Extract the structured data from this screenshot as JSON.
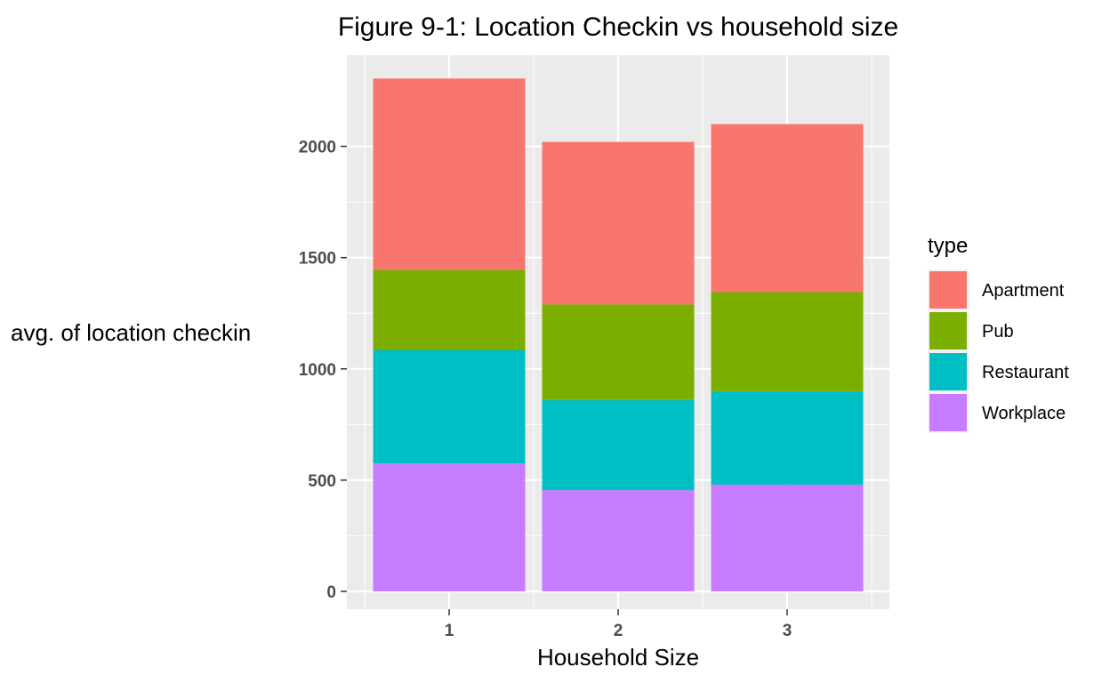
{
  "chart_data": {
    "type": "bar",
    "stacked": true,
    "title": "Figure 9-1: Location Checkin vs household size",
    "xlabel": "Household Size",
    "ylabel": "avg. of location checkin",
    "categories": [
      "1",
      "2",
      "3"
    ],
    "ylim": [
      -80,
      2410
    ],
    "yticks": [
      0,
      500,
      1000,
      1500,
      2000
    ],
    "grid": true,
    "legend": {
      "title": "type",
      "position": "right"
    },
    "series": [
      {
        "name": "Workplace",
        "color": "#C77CFF",
        "values": [
          575,
          455,
          480
        ]
      },
      {
        "name": "Restaurant",
        "color": "#00BFC4",
        "values": [
          510,
          405,
          420
        ]
      },
      {
        "name": "Pub",
        "color": "#7CAE00",
        "values": [
          360,
          430,
          445
        ]
      },
      {
        "name": "Apartment",
        "color": "#F8766D",
        "values": [
          860,
          730,
          755
        ]
      }
    ],
    "legend_order": [
      "Apartment",
      "Pub",
      "Restaurant",
      "Workplace"
    ]
  }
}
